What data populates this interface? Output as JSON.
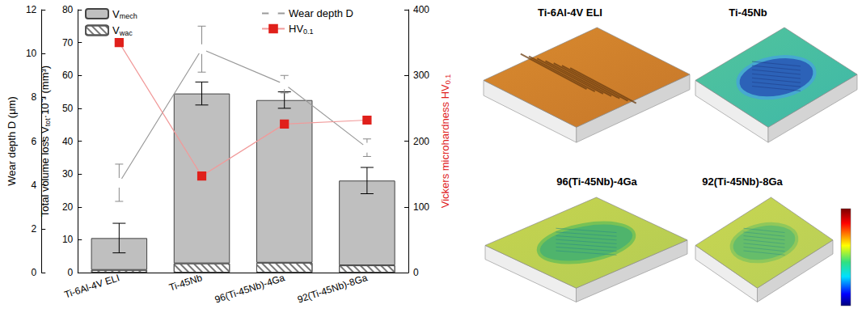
{
  "chart_data": {
    "type": "bar",
    "categories": [
      "Ti-6Al-4V ELI",
      "Ti-45Nb",
      "96(Ti-45Nb)-4Ga",
      "92(Ti-45Nb)-8Ga"
    ],
    "stacked": true,
    "grid": false,
    "legend": "top",
    "series": [
      {
        "name": "Vmech",
        "type": "bar",
        "color": "#bfbfbf",
        "values": [
          9.7,
          51.7,
          49.5,
          25.8
        ],
        "errors": [
          4.5,
          3.5,
          2.5,
          4
        ]
      },
      {
        "name": "Vwac",
        "type": "bar",
        "color": "#ffffff",
        "values": [
          0.8,
          2.8,
          3.0,
          2.2
        ]
      },
      {
        "name": "Wear depth D",
        "type": "line",
        "axis": "y3",
        "color": "#000000",
        "marker": "open_circle",
        "values": [
          4.1,
          10.2,
          8.6,
          5.7
        ],
        "errors": [
          0.85,
          1.05,
          0.4,
          0.4
        ]
      },
      {
        "name": "HV0.1",
        "type": "line",
        "axis": "y2",
        "color": "#e0201b",
        "marker": "square",
        "values": [
          350,
          147,
          226,
          232
        ]
      }
    ],
    "ylabel": "Total volume loss Vtot·10⁻³ (mm³)",
    "ylim": [
      0,
      80
    ],
    "yticks": [
      0,
      10,
      20,
      30,
      40,
      50,
      60,
      70,
      80
    ],
    "y2label": "Vickers microhardness HV0.1",
    "y2lim": [
      0,
      400
    ],
    "y2ticks": [
      0,
      100,
      200,
      300,
      400
    ],
    "y3label": "Wear depth D (μm)",
    "y3lim": [
      0,
      12
    ],
    "y3ticks": [
      0,
      2,
      4,
      6,
      8,
      10,
      12
    ]
  },
  "surface_maps": [
    {
      "title": "Ti-6Al-4V ELI"
    },
    {
      "title": "Ti-45Nb"
    },
    {
      "title": "96(Ti-45Nb)-4Ga"
    },
    {
      "title": "92(Ti-45Nb)-8Ga"
    }
  ]
}
